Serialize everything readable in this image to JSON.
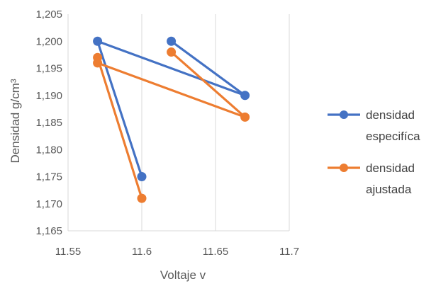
{
  "chart_data": {
    "type": "scatter",
    "title": "",
    "xlabel": "Voltaje v",
    "ylabel": "Densidad g/cm³",
    "xlim": [
      11.55,
      11.7
    ],
    "ylim": [
      1.165,
      1.205
    ],
    "x_ticks": [
      "11.55",
      "11.6",
      "11.65",
      "11.7"
    ],
    "y_ticks": [
      "1,165",
      "1,170",
      "1,175",
      "1,180",
      "1,185",
      "1,190",
      "1,195",
      "1,200",
      "1,205"
    ],
    "grid": "vertical",
    "legend_position": "right",
    "series": [
      {
        "name": [
          "densidad",
          "especifíca"
        ],
        "color": "#4472C4",
        "points": [
          [
            11.62,
            1.2
          ],
          [
            11.67,
            1.19
          ],
          [
            11.57,
            1.2
          ],
          [
            11.6,
            1.175
          ]
        ]
      },
      {
        "name": [
          "densidad",
          "ajustada"
        ],
        "color": "#ED7D31",
        "points": [
          [
            11.62,
            1.198
          ],
          [
            11.67,
            1.186
          ],
          [
            11.57,
            1.196
          ],
          [
            11.57,
            1.197
          ],
          [
            11.6,
            1.171
          ]
        ]
      }
    ]
  }
}
